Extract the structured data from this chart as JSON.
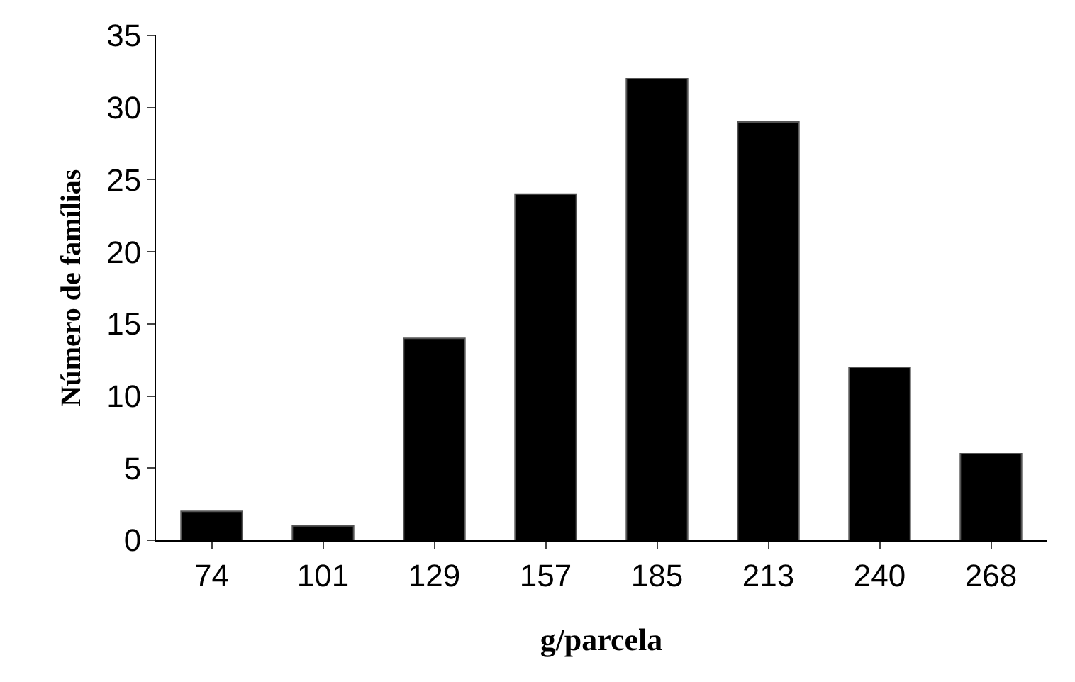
{
  "chart_data": {
    "type": "bar",
    "xlabel": "g/parcela",
    "ylabel": "Número de famílias",
    "categories": [
      "74",
      "101",
      "129",
      "157",
      "185",
      "213",
      "240",
      "268"
    ],
    "values": [
      2,
      1,
      14,
      24,
      32,
      29,
      12,
      6
    ],
    "color": "#000000",
    "ylim": [
      0,
      35
    ],
    "yticks": [
      0,
      5,
      10,
      15,
      20,
      25,
      30,
      35
    ]
  }
}
